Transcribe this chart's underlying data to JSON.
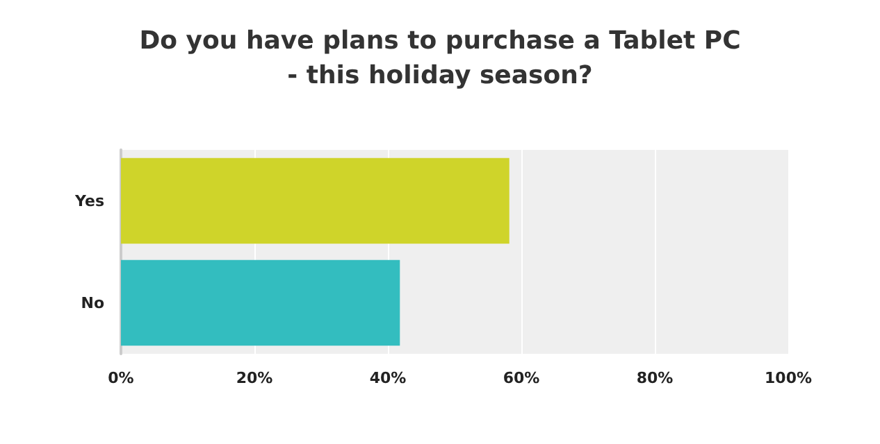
{
  "chart_data": {
    "type": "bar",
    "orientation": "horizontal",
    "title": "Do you have plans to purchase a Tablet PC\n- this holiday season?",
    "categories": [
      "Yes",
      "No"
    ],
    "values": [
      58.2,
      41.8
    ],
    "colors": [
      "#cfd42a",
      "#33bdbf"
    ],
    "xlim": [
      0,
      100
    ],
    "xticks": [
      {
        "value": 0,
        "label": "0%"
      },
      {
        "value": 20,
        "label": "20%"
      },
      {
        "value": 40,
        "label": "40%"
      },
      {
        "value": 60,
        "label": "60%"
      },
      {
        "value": 80,
        "label": "80%"
      },
      {
        "value": 100,
        "label": "100%"
      }
    ],
    "grid": "x"
  }
}
